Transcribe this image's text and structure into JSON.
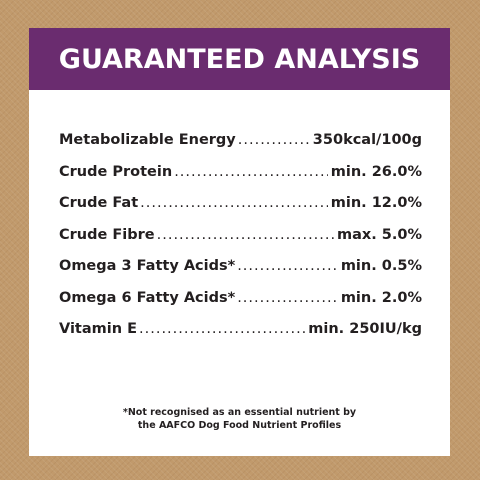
{
  "header": {
    "title": "GUARANTEED ANALYSIS"
  },
  "analysis": [
    {
      "name": "Metabolizable Energy",
      "value": "350kcal/100g"
    },
    {
      "name": "Crude Protein",
      "value": "min. 26.0%"
    },
    {
      "name": "Crude Fat",
      "value": "min. 12.0%"
    },
    {
      "name": "Crude Fibre",
      "value": "max. 5.0%"
    },
    {
      "name": "Omega 3 Fatty Acids*",
      "value": "min. 0.5%"
    },
    {
      "name": "Omega 6 Fatty Acids*",
      "value": "min. 2.0%"
    },
    {
      "name": "Vitamin E",
      "value": "min. 250IU/kg"
    }
  ],
  "footnote": {
    "line1": "*Not recognised as an essential nutrient by",
    "line2": "the AAFCO Dog Food Nutrient Profiles"
  },
  "colors": {
    "header_bg": "#6a2c6f",
    "background": "#c19a6c",
    "card": "#ffffff",
    "text": "#231f20"
  }
}
